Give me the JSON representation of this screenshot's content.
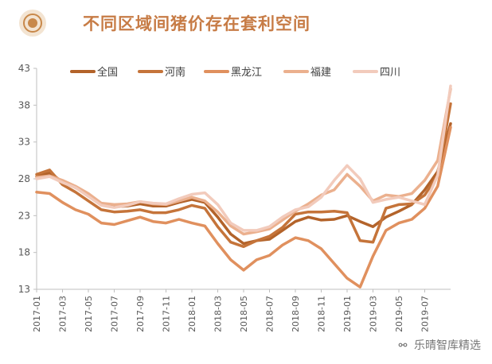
{
  "header": {
    "title": "不同区域间猪价存在套利空间"
  },
  "watermark": {
    "text": "乐晴智库精选",
    "icon": "wechat-icon"
  },
  "chart_data": {
    "type": "line",
    "title": "不同区域间猪价存在套利空间",
    "xlabel": "",
    "ylabel": "",
    "ylim": [
      13,
      43
    ],
    "yticks": [
      13,
      18,
      23,
      28,
      33,
      38,
      43
    ],
    "xticks": [
      "2017-01",
      "2017-03",
      "2017-05",
      "2017-07",
      "2017-09",
      "2017-11",
      "2018-01",
      "2018-03",
      "2018-05",
      "2018-07",
      "2018-09",
      "2018-11",
      "2019-01",
      "2019-03",
      "2019-05",
      "2019-07"
    ],
    "xrange": [
      "2017-01",
      "2019-09"
    ],
    "grid": false,
    "legend_position": "top",
    "series": [
      {
        "name": "全国",
        "color": "#b3632a",
        "points": [
          [
            "2017-01",
            28.3
          ],
          [
            "2017-02",
            28.8
          ],
          [
            "2017-03",
            27.6
          ],
          [
            "2017-04",
            26.8
          ],
          [
            "2017-05",
            25.8
          ],
          [
            "2017-06",
            24.5
          ],
          [
            "2017-07",
            24.2
          ],
          [
            "2017-08",
            24.3
          ],
          [
            "2017-09",
            24.6
          ],
          [
            "2017-10",
            24.3
          ],
          [
            "2017-11",
            24.3
          ],
          [
            "2017-12",
            24.8
          ],
          [
            "2018-01",
            25.2
          ],
          [
            "2018-02",
            24.8
          ],
          [
            "2018-03",
            22.8
          ],
          [
            "2018-04",
            20.5
          ],
          [
            "2018-05",
            19.2
          ],
          [
            "2018-06",
            19.6
          ],
          [
            "2018-07",
            19.8
          ],
          [
            "2018-08",
            21.0
          ],
          [
            "2018-09",
            22.2
          ],
          [
            "2018-10",
            22.8
          ],
          [
            "2018-11",
            22.4
          ],
          [
            "2018-12",
            22.5
          ],
          [
            "2019-01",
            23.0
          ],
          [
            "2019-02",
            22.2
          ],
          [
            "2019-03",
            21.5
          ],
          [
            "2019-04",
            22.8
          ],
          [
            "2019-05",
            23.6
          ],
          [
            "2019-06",
            24.5
          ],
          [
            "2019-07",
            26.5
          ],
          [
            "2019-08",
            29.0
          ],
          [
            "2019-09",
            35.5
          ]
        ]
      },
      {
        "name": "河南",
        "color": "#c5743a",
        "points": [
          [
            "2017-01",
            28.6
          ],
          [
            "2017-02",
            29.2
          ],
          [
            "2017-03",
            27.2
          ],
          [
            "2017-04",
            26.2
          ],
          [
            "2017-05",
            25.0
          ],
          [
            "2017-06",
            23.8
          ],
          [
            "2017-07",
            23.5
          ],
          [
            "2017-08",
            23.6
          ],
          [
            "2017-09",
            23.8
          ],
          [
            "2017-10",
            23.4
          ],
          [
            "2017-11",
            23.4
          ],
          [
            "2017-12",
            23.8
          ],
          [
            "2018-01",
            24.4
          ],
          [
            "2018-02",
            24.0
          ],
          [
            "2018-03",
            21.5
          ],
          [
            "2018-04",
            19.4
          ],
          [
            "2018-05",
            18.8
          ],
          [
            "2018-06",
            19.6
          ],
          [
            "2018-07",
            20.2
          ],
          [
            "2018-08",
            21.4
          ],
          [
            "2018-09",
            23.2
          ],
          [
            "2018-10",
            23.5
          ],
          [
            "2018-11",
            23.5
          ],
          [
            "2018-12",
            23.6
          ],
          [
            "2019-01",
            23.4
          ],
          [
            "2019-02",
            19.6
          ],
          [
            "2019-03",
            19.4
          ],
          [
            "2019-04",
            24.0
          ],
          [
            "2019-05",
            24.5
          ],
          [
            "2019-06",
            24.6
          ],
          [
            "2019-07",
            25.8
          ],
          [
            "2019-08",
            28.5
          ],
          [
            "2019-09",
            38.2
          ]
        ]
      },
      {
        "name": "黑龙江",
        "color": "#e0905e",
        "points": [
          [
            "2017-01",
            26.2
          ],
          [
            "2017-02",
            26.0
          ],
          [
            "2017-03",
            24.8
          ],
          [
            "2017-04",
            23.8
          ],
          [
            "2017-05",
            23.2
          ],
          [
            "2017-06",
            22.0
          ],
          [
            "2017-07",
            21.8
          ],
          [
            "2017-08",
            22.3
          ],
          [
            "2017-09",
            22.8
          ],
          [
            "2017-10",
            22.2
          ],
          [
            "2017-11",
            22.0
          ],
          [
            "2017-12",
            22.5
          ],
          [
            "2018-01",
            22.0
          ],
          [
            "2018-02",
            21.6
          ],
          [
            "2018-03",
            19.2
          ],
          [
            "2018-04",
            17.0
          ],
          [
            "2018-05",
            15.6
          ],
          [
            "2018-06",
            17.0
          ],
          [
            "2018-07",
            17.6
          ],
          [
            "2018-08",
            19.0
          ],
          [
            "2018-09",
            20.0
          ],
          [
            "2018-10",
            19.6
          ],
          [
            "2018-11",
            18.5
          ],
          [
            "2018-12",
            16.5
          ],
          [
            "2019-01",
            14.5
          ],
          [
            "2019-02",
            13.3
          ],
          [
            "2019-03",
            17.5
          ],
          [
            "2019-04",
            21.0
          ],
          [
            "2019-05",
            22.0
          ],
          [
            "2019-06",
            22.5
          ],
          [
            "2019-07",
            24.0
          ],
          [
            "2019-08",
            27.0
          ],
          [
            "2019-09",
            35.0
          ]
        ]
      },
      {
        "name": "福建",
        "color": "#ebb08e",
        "points": [
          [
            "2017-01",
            28.2
          ],
          [
            "2017-02",
            28.4
          ],
          [
            "2017-03",
            27.8
          ],
          [
            "2017-04",
            27.0
          ],
          [
            "2017-05",
            26.0
          ],
          [
            "2017-06",
            24.7
          ],
          [
            "2017-07",
            24.5
          ],
          [
            "2017-08",
            24.6
          ],
          [
            "2017-09",
            24.9
          ],
          [
            "2017-10",
            24.6
          ],
          [
            "2017-11",
            24.5
          ],
          [
            "2017-12",
            25.0
          ],
          [
            "2018-01",
            25.5
          ],
          [
            "2018-02",
            25.0
          ],
          [
            "2018-03",
            23.5
          ],
          [
            "2018-04",
            21.6
          ],
          [
            "2018-05",
            20.5
          ],
          [
            "2018-06",
            20.8
          ],
          [
            "2018-07",
            21.2
          ],
          [
            "2018-08",
            22.4
          ],
          [
            "2018-09",
            23.6
          ],
          [
            "2018-10",
            24.6
          ],
          [
            "2018-11",
            25.8
          ],
          [
            "2018-12",
            26.5
          ],
          [
            "2019-01",
            28.6
          ],
          [
            "2019-02",
            27.0
          ],
          [
            "2019-03",
            25.0
          ],
          [
            "2019-04",
            25.8
          ],
          [
            "2019-05",
            25.6
          ],
          [
            "2019-06",
            26.0
          ],
          [
            "2019-07",
            27.8
          ],
          [
            "2019-08",
            30.5
          ],
          [
            "2019-09",
            40.2
          ]
        ]
      },
      {
        "name": "四川",
        "color": "#f2cbbc",
        "points": [
          [
            "2017-01",
            28.0
          ],
          [
            "2017-02",
            28.3
          ],
          [
            "2017-03",
            27.5
          ],
          [
            "2017-04",
            26.8
          ],
          [
            "2017-05",
            25.6
          ],
          [
            "2017-06",
            24.4
          ],
          [
            "2017-07",
            24.1
          ],
          [
            "2017-08",
            24.4
          ],
          [
            "2017-09",
            24.9
          ],
          [
            "2017-10",
            24.7
          ],
          [
            "2017-11",
            24.6
          ],
          [
            "2017-12",
            25.3
          ],
          [
            "2018-01",
            25.9
          ],
          [
            "2018-02",
            26.1
          ],
          [
            "2018-03",
            24.5
          ],
          [
            "2018-04",
            22.0
          ],
          [
            "2018-05",
            21.0
          ],
          [
            "2018-06",
            21.0
          ],
          [
            "2018-07",
            21.5
          ],
          [
            "2018-08",
            22.8
          ],
          [
            "2018-09",
            23.8
          ],
          [
            "2018-10",
            24.2
          ],
          [
            "2018-11",
            25.5
          ],
          [
            "2018-12",
            27.8
          ],
          [
            "2019-01",
            29.8
          ],
          [
            "2019-02",
            28.0
          ],
          [
            "2019-03",
            24.8
          ],
          [
            "2019-04",
            25.2
          ],
          [
            "2019-05",
            25.5
          ],
          [
            "2019-06",
            25.0
          ],
          [
            "2019-07",
            24.5
          ],
          [
            "2019-08",
            28.5
          ],
          [
            "2019-09",
            40.6
          ]
        ]
      }
    ]
  }
}
